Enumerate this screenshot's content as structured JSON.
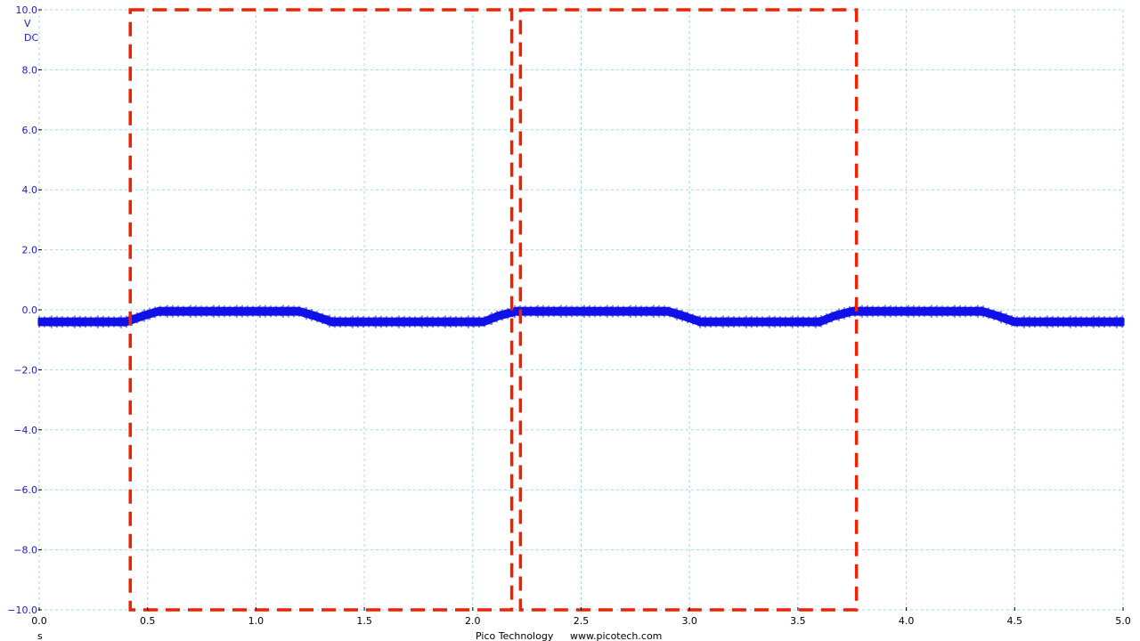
{
  "colors": {
    "trace": "#1010e8",
    "y_axis_text": "#1a1ad0",
    "grid": "#a8d8e8",
    "markers": "#ee2200",
    "background": "#ffffff"
  },
  "units": {
    "y_unit": "V",
    "coupling": "DC",
    "x_unit": "s"
  },
  "footer": {
    "company": "Pico Technology",
    "website": "www.picotech.com"
  },
  "chart_data": {
    "type": "line",
    "title": "",
    "xlabel": "s",
    "ylabel": "V",
    "xlim": [
      0.0,
      5.0
    ],
    "ylim": [
      -10.0,
      10.0
    ],
    "grid": true,
    "x_ticks": [
      "0.0",
      "0.5",
      "1.0",
      "1.5",
      "2.0",
      "2.5",
      "3.0",
      "3.5",
      "4.0",
      "4.5",
      "5.0"
    ],
    "y_ticks": [
      "10.0",
      "8.0",
      "6.0",
      "4.0",
      "2.0",
      "0.0",
      "-2.0",
      "-4.0",
      "-6.0",
      "-8.0",
      "-10.0"
    ],
    "series": [
      {
        "x": [
          0.0,
          0.4,
          0.48,
          0.55,
          1.2,
          1.27,
          1.35,
          2.05,
          2.12,
          2.2,
          2.9,
          2.97,
          3.05,
          3.6,
          3.67,
          3.75,
          4.35,
          4.42,
          4.5,
          5.0
        ],
        "y": [
          -0.4,
          -0.4,
          -0.2,
          -0.05,
          -0.05,
          -0.2,
          -0.4,
          -0.4,
          -0.2,
          -0.05,
          -0.05,
          -0.2,
          -0.4,
          -0.4,
          -0.2,
          -0.05,
          -0.05,
          -0.2,
          -0.4,
          -0.4
        ],
        "noise_band": 0.2
      }
    ],
    "markers": [
      {
        "x1": 0.42,
        "x2": 2.18,
        "y1": -10.0,
        "y2": 10.0
      },
      {
        "x1": 2.22,
        "x2": 3.77,
        "y1": -10.0,
        "y2": 10.0
      }
    ]
  }
}
